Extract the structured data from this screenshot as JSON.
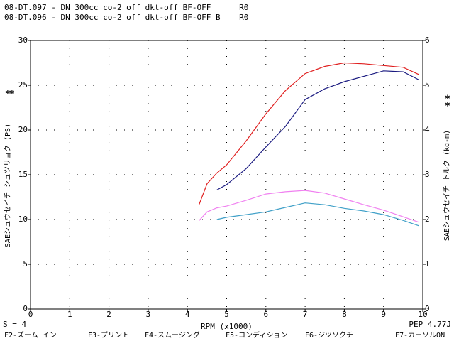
{
  "header": {
    "lines": [
      {
        "text": "08-DT.097 - DN 300cc co-2 off dkt-off BF-OFF      R0",
        "color": "#2020a0"
      },
      {
        "text": "08-DT.096 - DN 300cc co-2 off dkt-off BF-OFF B    R0",
        "color": "#e02020"
      }
    ]
  },
  "chart_data": {
    "type": "line",
    "xlabel": "RPM (x1000)",
    "ylabel": "SAEシュウセイチ シュツリョク (PS)",
    "y2label": "SAEシュウセイチ トルク (kg-m)",
    "x": [
      4.3,
      4.5,
      4.75,
      5,
      5.5,
      6,
      6.5,
      7,
      7.5,
      8,
      8.5,
      9,
      9.5,
      9.9
    ],
    "series": [
      {
        "color": "#e02020",
        "values": [
          11.7,
          14.0,
          15.2,
          16.1,
          18.8,
          21.8,
          24.4,
          26.3,
          27.1,
          27.5,
          27.4,
          27.2,
          27.0,
          26.2
        ]
      },
      {
        "color": "#1a1a80",
        "values": [
          null,
          null,
          13.3,
          13.9,
          15.7,
          18.1,
          20.4,
          23.4,
          24.6,
          25.4,
          26.0,
          26.6,
          26.5,
          25.6
        ]
      },
      {
        "color": "#f080f0",
        "axis": "y2",
        "values": [
          1.98,
          2.17,
          2.26,
          2.3,
          2.43,
          2.57,
          2.62,
          2.65,
          2.59,
          2.46,
          2.33,
          2.21,
          2.06,
          1.94
        ]
      },
      {
        "color": "#40a0c8",
        "axis": "y2",
        "values": [
          null,
          null,
          2.0,
          2.05,
          2.11,
          2.17,
          2.27,
          2.37,
          2.33,
          2.25,
          2.19,
          2.11,
          1.98,
          1.86
        ]
      }
    ],
    "xlim": [
      0,
      10
    ],
    "xticks": [
      0,
      1,
      2,
      3,
      4,
      5,
      6,
      7,
      8,
      9,
      10
    ],
    "ylim": [
      0,
      30
    ],
    "yticks": [
      0,
      5,
      10,
      15,
      20,
      25,
      30
    ],
    "y2lim": [
      0,
      6
    ],
    "y2ticks": [
      0,
      1,
      2,
      3,
      4,
      5,
      6
    ],
    "grid": true
  },
  "markers": {
    "left": [
      {
        "text": "*",
        "color": "#e02020"
      },
      {
        "text": "*",
        "color": "#2020a0"
      }
    ],
    "right": [
      {
        "text": "*",
        "color": "#40a0c8"
      },
      {
        "text": "*",
        "color": "#f080f0"
      }
    ]
  },
  "footer": {
    "smoothing": "S = 4",
    "pep": "PEP 4.77J",
    "menu": [
      "F2-ズーム イン",
      "F3-プリント",
      "F4-スムージング",
      "F5-コンディション",
      "F6-ジツソクチ",
      "F7-カーソルON"
    ]
  }
}
